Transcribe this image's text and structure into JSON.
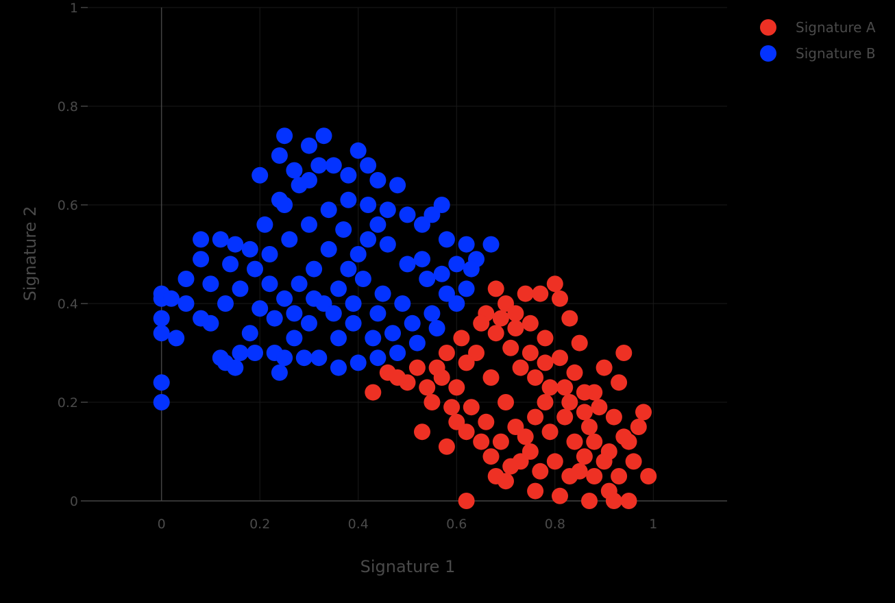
{
  "chart_data": {
    "type": "scatter",
    "xlabel": "Signature 1",
    "ylabel": "Signature 2",
    "xlim": [
      -0.15,
      1.15
    ],
    "ylim": [
      0,
      1.0
    ],
    "xticks": [
      0,
      0.2,
      0.4,
      0.6,
      0.8,
      1
    ],
    "xtick_labels": [
      "0",
      "0.2",
      "0.4",
      "0.6",
      "0.8",
      "1"
    ],
    "yticks": [
      0,
      0.2,
      0.4,
      0.6,
      0.8,
      1
    ],
    "ytick_labels": [
      "0",
      "0.2",
      "0.4",
      "0.6",
      "0.8",
      "1"
    ],
    "grid": true,
    "legend_position": "top-right",
    "background": "#000000",
    "series": [
      {
        "name": "Signature A",
        "color": "#ee3124",
        "points": [
          [
            0.62,
            0.0
          ],
          [
            0.58,
            0.11
          ],
          [
            0.53,
            0.14
          ],
          [
            0.5,
            0.24
          ],
          [
            0.43,
            0.22
          ],
          [
            0.46,
            0.26
          ],
          [
            0.55,
            0.2
          ],
          [
            0.6,
            0.16
          ],
          [
            0.65,
            0.12
          ],
          [
            0.68,
            0.05
          ],
          [
            0.7,
            0.04
          ],
          [
            0.76,
            0.02
          ],
          [
            0.81,
            0.01
          ],
          [
            0.87,
            0.0
          ],
          [
            0.92,
            0.0
          ],
          [
            0.95,
            0.0
          ],
          [
            0.91,
            0.02
          ],
          [
            0.93,
            0.05
          ],
          [
            0.99,
            0.05
          ],
          [
            0.96,
            0.08
          ],
          [
            0.97,
            0.15
          ],
          [
            0.98,
            0.18
          ],
          [
            0.95,
            0.12
          ],
          [
            0.93,
            0.24
          ],
          [
            0.94,
            0.3
          ],
          [
            0.9,
            0.27
          ],
          [
            0.88,
            0.22
          ],
          [
            0.85,
            0.32
          ],
          [
            0.84,
            0.26
          ],
          [
            0.83,
            0.37
          ],
          [
            0.8,
            0.44
          ],
          [
            0.81,
            0.41
          ],
          [
            0.77,
            0.42
          ],
          [
            0.74,
            0.42
          ],
          [
            0.68,
            0.43
          ],
          [
            0.7,
            0.4
          ],
          [
            0.66,
            0.38
          ],
          [
            0.72,
            0.35
          ],
          [
            0.75,
            0.3
          ],
          [
            0.78,
            0.28
          ],
          [
            0.82,
            0.23
          ],
          [
            0.86,
            0.18
          ],
          [
            0.88,
            0.12
          ],
          [
            0.9,
            0.08
          ],
          [
            0.85,
            0.06
          ],
          [
            0.8,
            0.08
          ],
          [
            0.75,
            0.1
          ],
          [
            0.72,
            0.15
          ],
          [
            0.7,
            0.2
          ],
          [
            0.67,
            0.25
          ],
          [
            0.64,
            0.3
          ],
          [
            0.61,
            0.33
          ],
          [
            0.58,
            0.3
          ],
          [
            0.56,
            0.27
          ],
          [
            0.6,
            0.23
          ],
          [
            0.63,
            0.19
          ],
          [
            0.66,
            0.16
          ],
          [
            0.69,
            0.12
          ],
          [
            0.73,
            0.08
          ],
          [
            0.77,
            0.06
          ],
          [
            0.79,
            0.14
          ],
          [
            0.82,
            0.17
          ],
          [
            0.84,
            0.12
          ],
          [
            0.87,
            0.15
          ],
          [
            0.89,
            0.19
          ],
          [
            0.78,
            0.2
          ],
          [
            0.76,
            0.25
          ],
          [
            0.73,
            0.27
          ],
          [
            0.71,
            0.31
          ],
          [
            0.68,
            0.34
          ],
          [
            0.65,
            0.36
          ],
          [
            0.62,
            0.28
          ],
          [
            0.57,
            0.25
          ],
          [
            0.52,
            0.27
          ],
          [
            0.48,
            0.25
          ],
          [
            0.54,
            0.23
          ],
          [
            0.59,
            0.19
          ],
          [
            0.62,
            0.14
          ],
          [
            0.67,
            0.09
          ],
          [
            0.71,
            0.07
          ],
          [
            0.74,
            0.13
          ],
          [
            0.76,
            0.17
          ],
          [
            0.79,
            0.23
          ],
          [
            0.81,
            0.29
          ],
          [
            0.78,
            0.33
          ],
          [
            0.75,
            0.36
          ],
          [
            0.72,
            0.38
          ],
          [
            0.69,
            0.37
          ],
          [
            0.83,
            0.2
          ],
          [
            0.86,
            0.22
          ],
          [
            0.88,
            0.05
          ],
          [
            0.91,
            0.1
          ],
          [
            0.94,
            0.13
          ],
          [
            0.92,
            0.17
          ],
          [
            0.86,
            0.09
          ],
          [
            0.83,
            0.05
          ]
        ]
      },
      {
        "name": "Signature B",
        "color": "#0433ff",
        "points": [
          [
            0.0,
            0.2
          ],
          [
            0.0,
            0.24
          ],
          [
            0.0,
            0.34
          ],
          [
            0.0,
            0.37
          ],
          [
            0.0,
            0.41
          ],
          [
            0.0,
            0.42
          ],
          [
            0.03,
            0.33
          ],
          [
            0.02,
            0.41
          ],
          [
            0.05,
            0.45
          ],
          [
            0.05,
            0.4
          ],
          [
            0.08,
            0.37
          ],
          [
            0.08,
            0.49
          ],
          [
            0.08,
            0.53
          ],
          [
            0.1,
            0.36
          ],
          [
            0.12,
            0.29
          ],
          [
            0.13,
            0.28
          ],
          [
            0.15,
            0.27
          ],
          [
            0.16,
            0.3
          ],
          [
            0.12,
            0.53
          ],
          [
            0.15,
            0.52
          ],
          [
            0.18,
            0.34
          ],
          [
            0.19,
            0.3
          ],
          [
            0.21,
            0.56
          ],
          [
            0.23,
            0.3
          ],
          [
            0.24,
            0.26
          ],
          [
            0.25,
            0.29
          ],
          [
            0.25,
            0.6
          ],
          [
            0.24,
            0.61
          ],
          [
            0.2,
            0.66
          ],
          [
            0.24,
            0.7
          ],
          [
            0.25,
            0.74
          ],
          [
            0.27,
            0.67
          ],
          [
            0.3,
            0.72
          ],
          [
            0.32,
            0.68
          ],
          [
            0.33,
            0.74
          ],
          [
            0.28,
            0.64
          ],
          [
            0.3,
            0.65
          ],
          [
            0.35,
            0.68
          ],
          [
            0.38,
            0.66
          ],
          [
            0.4,
            0.71
          ],
          [
            0.42,
            0.68
          ],
          [
            0.44,
            0.65
          ],
          [
            0.48,
            0.64
          ],
          [
            0.5,
            0.58
          ],
          [
            0.53,
            0.56
          ],
          [
            0.55,
            0.58
          ],
          [
            0.57,
            0.6
          ],
          [
            0.58,
            0.53
          ],
          [
            0.62,
            0.52
          ],
          [
            0.64,
            0.49
          ],
          [
            0.63,
            0.47
          ],
          [
            0.67,
            0.52
          ],
          [
            0.6,
            0.48
          ],
          [
            0.62,
            0.43
          ],
          [
            0.6,
            0.4
          ],
          [
            0.56,
            0.35
          ],
          [
            0.52,
            0.32
          ],
          [
            0.48,
            0.3
          ],
          [
            0.44,
            0.29
          ],
          [
            0.4,
            0.28
          ],
          [
            0.36,
            0.27
          ],
          [
            0.32,
            0.29
          ],
          [
            0.29,
            0.29
          ],
          [
            0.27,
            0.33
          ],
          [
            0.3,
            0.36
          ],
          [
            0.33,
            0.4
          ],
          [
            0.36,
            0.43
          ],
          [
            0.38,
            0.47
          ],
          [
            0.4,
            0.5
          ],
          [
            0.42,
            0.53
          ],
          [
            0.44,
            0.56
          ],
          [
            0.46,
            0.59
          ],
          [
            0.37,
            0.55
          ],
          [
            0.34,
            0.51
          ],
          [
            0.31,
            0.47
          ],
          [
            0.28,
            0.44
          ],
          [
            0.25,
            0.41
          ],
          [
            0.22,
            0.44
          ],
          [
            0.19,
            0.47
          ],
          [
            0.16,
            0.43
          ],
          [
            0.13,
            0.4
          ],
          [
            0.1,
            0.44
          ],
          [
            0.14,
            0.48
          ],
          [
            0.18,
            0.51
          ],
          [
            0.22,
            0.5
          ],
          [
            0.26,
            0.53
          ],
          [
            0.3,
            0.56
          ],
          [
            0.34,
            0.59
          ],
          [
            0.38,
            0.61
          ],
          [
            0.42,
            0.6
          ],
          [
            0.46,
            0.52
          ],
          [
            0.5,
            0.48
          ],
          [
            0.54,
            0.45
          ],
          [
            0.58,
            0.42
          ],
          [
            0.55,
            0.38
          ],
          [
            0.51,
            0.36
          ],
          [
            0.47,
            0.34
          ],
          [
            0.43,
            0.33
          ],
          [
            0.39,
            0.36
          ],
          [
            0.35,
            0.38
          ],
          [
            0.31,
            0.41
          ],
          [
            0.27,
            0.38
          ],
          [
            0.23,
            0.37
          ],
          [
            0.2,
            0.39
          ],
          [
            0.41,
            0.45
          ],
          [
            0.45,
            0.42
          ],
          [
            0.49,
            0.4
          ],
          [
            0.53,
            0.49
          ],
          [
            0.57,
            0.46
          ],
          [
            0.39,
            0.4
          ],
          [
            0.36,
            0.33
          ],
          [
            0.44,
            0.38
          ]
        ]
      }
    ]
  }
}
